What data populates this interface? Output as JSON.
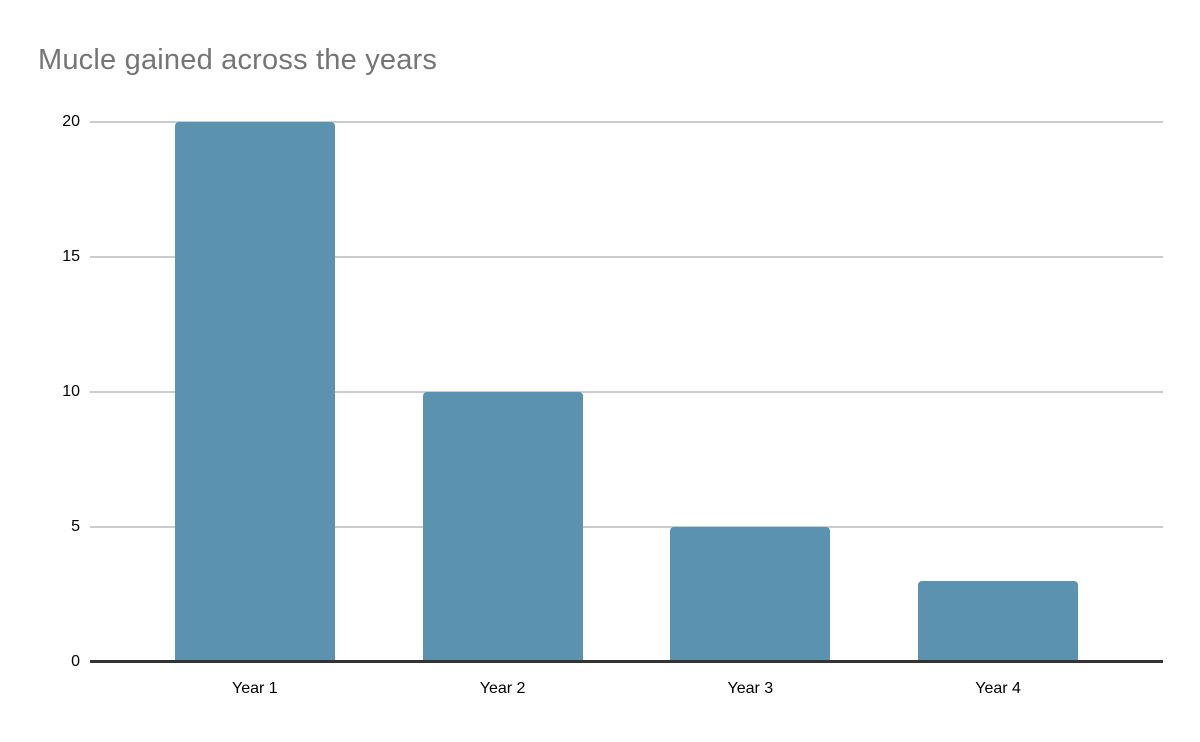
{
  "chart": {
    "title": "Mucle gained across the years"
  },
  "chart_data": {
    "type": "bar",
    "title": "Mucle gained across the years",
    "categories": [
      "Year 1",
      "Year 2",
      "Year 3",
      "Year 4"
    ],
    "values": [
      20,
      10,
      5,
      3
    ],
    "xlabel": "",
    "ylabel": "",
    "ylim": [
      0,
      20
    ],
    "yticks": [
      0,
      5,
      10,
      15,
      20
    ],
    "grid": true,
    "legend": "none",
    "colors": {
      "bar": "#5A92B0",
      "title": "#757575",
      "gridline": "#CCCCCC",
      "axis_line": "#333333",
      "tick_label": "#000000",
      "background": "#FFFFFF"
    }
  }
}
